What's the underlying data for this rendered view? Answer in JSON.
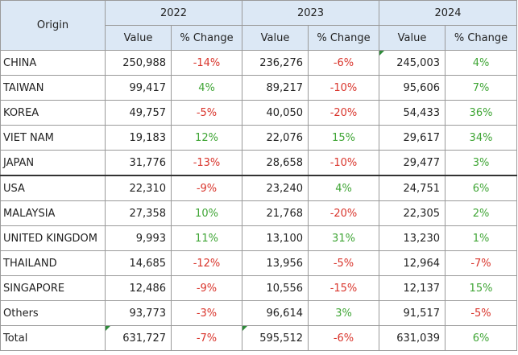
{
  "header": {
    "origin": "Origin",
    "years": [
      "2022",
      "2023",
      "2024"
    ],
    "value_label": "Value",
    "change_label": "% Change"
  },
  "rows": [
    {
      "name": "CHINA",
      "v2022": "250,988",
      "c2022": "-14%",
      "v2023": "236,276",
      "c2023": "-6%",
      "v2024": "245,003",
      "c2024": "4%"
    },
    {
      "name": "TAIWAN",
      "v2022": "99,417",
      "c2022": "4%",
      "v2023": "89,217",
      "c2023": "-10%",
      "v2024": "95,606",
      "c2024": "7%"
    },
    {
      "name": "KOREA",
      "v2022": "49,757",
      "c2022": "-5%",
      "v2023": "40,050",
      "c2023": "-20%",
      "v2024": "54,433",
      "c2024": "36%"
    },
    {
      "name": "VIET NAM",
      "v2022": "19,183",
      "c2022": "12%",
      "v2023": "22,076",
      "c2023": "15%",
      "v2024": "29,617",
      "c2024": "34%"
    },
    {
      "name": "JAPAN",
      "v2022": "31,776",
      "c2022": "-13%",
      "v2023": "28,658",
      "c2023": "-10%",
      "v2024": "29,477",
      "c2024": "3%"
    },
    {
      "name": "USA",
      "v2022": "22,310",
      "c2022": "-9%",
      "v2023": "23,240",
      "c2023": "4%",
      "v2024": "24,751",
      "c2024": "6%"
    },
    {
      "name": "MALAYSIA",
      "v2022": "27,358",
      "c2022": "10%",
      "v2023": "21,768",
      "c2023": "-20%",
      "v2024": "22,305",
      "c2024": "2%"
    },
    {
      "name": "UNITED KINGDOM",
      "v2022": "9,993",
      "c2022": "11%",
      "v2023": "13,100",
      "c2023": "31%",
      "v2024": "13,230",
      "c2024": "1%"
    },
    {
      "name": "THAILAND",
      "v2022": "14,685",
      "c2022": "-12%",
      "v2023": "13,956",
      "c2023": "-5%",
      "v2024": "12,964",
      "c2024": "-7%"
    },
    {
      "name": "SINGAPORE",
      "v2022": "12,486",
      "c2022": "-9%",
      "v2023": "10,556",
      "c2023": "-15%",
      "v2024": "12,137",
      "c2024": "15%"
    },
    {
      "name": "Others",
      "v2022": "93,773",
      "c2022": "-3%",
      "v2023": "96,614",
      "c2023": "3%",
      "v2024": "91,517",
      "c2024": "-5%"
    },
    {
      "name": "Total",
      "v2022": "631,727",
      "c2022": "-7%",
      "v2023": "595,512",
      "c2023": "-6%",
      "v2024": "631,039",
      "c2024": "6%"
    }
  ],
  "colors": {
    "header_bg": "#dce8f5",
    "negative": "#d9342b",
    "positive": "#3fa535",
    "flag": "#2e8b3a"
  }
}
